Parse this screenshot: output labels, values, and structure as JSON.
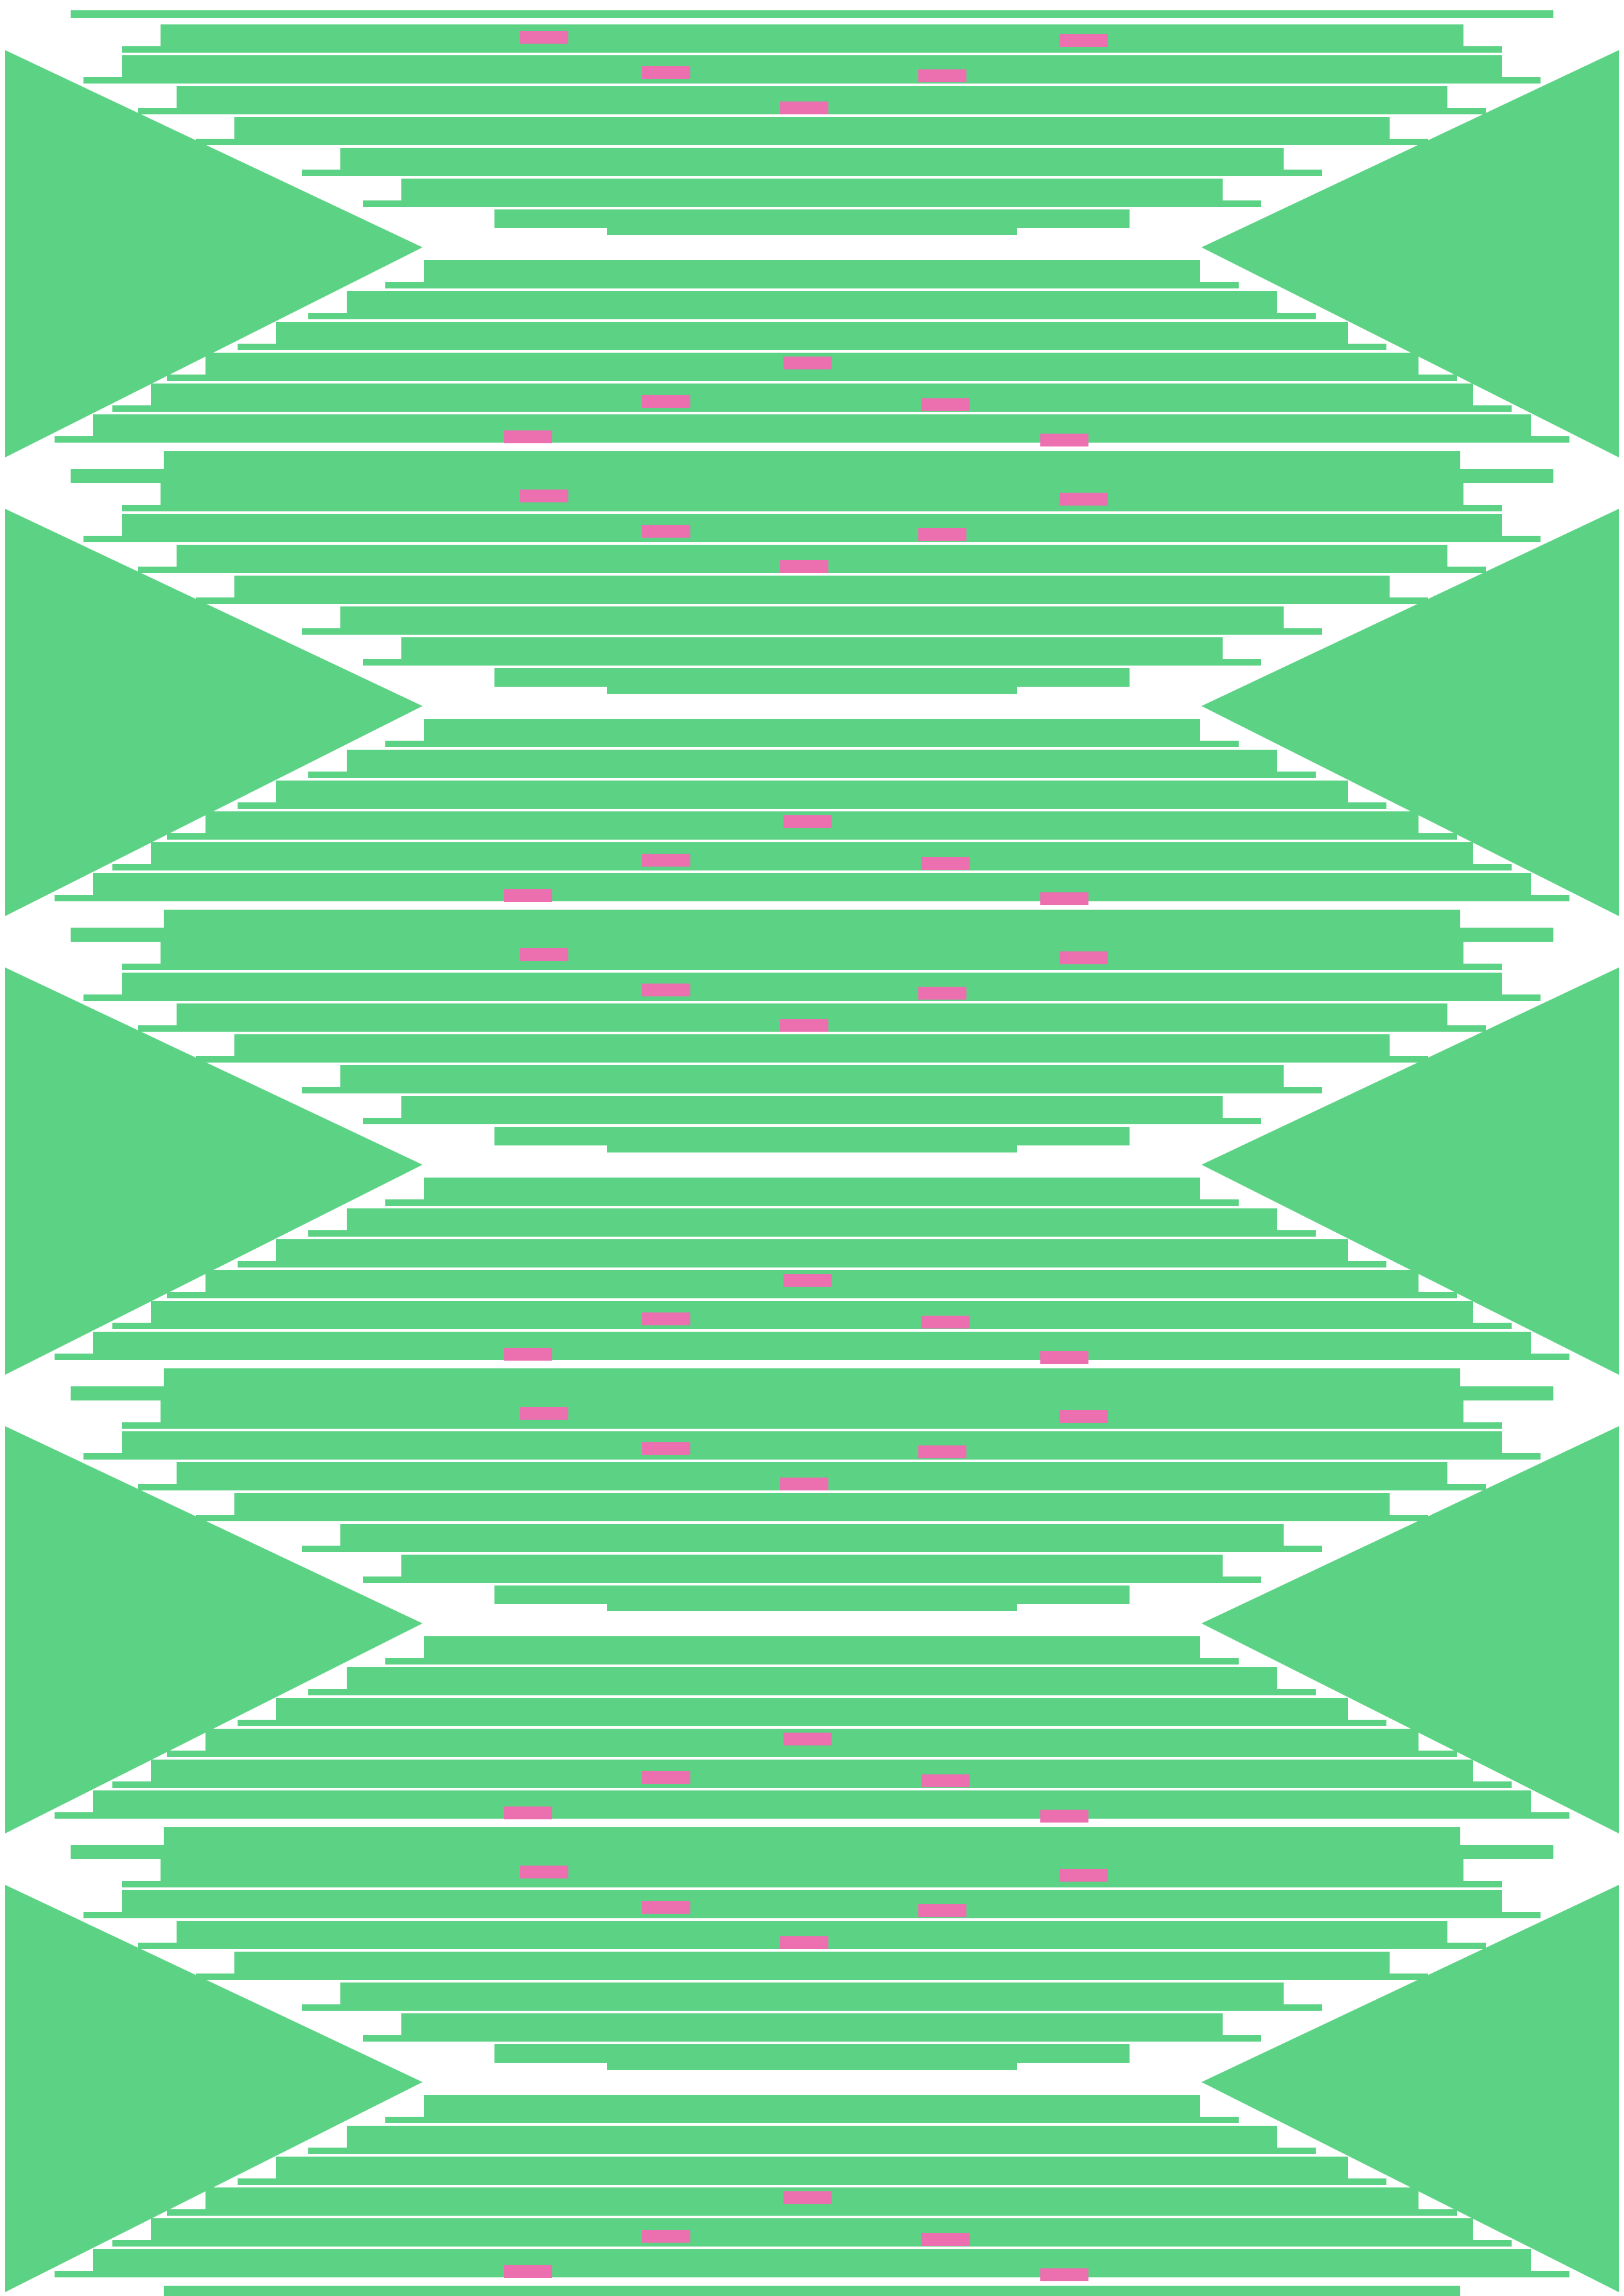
{
  "artwork": {
    "description_visible_text": "",
    "palette": {
      "background": "#ffffff",
      "green": "#5cd284",
      "pink": "#ec6fb0"
    },
    "motif": "stepped-diamond-bands",
    "band_count": 5
  }
}
